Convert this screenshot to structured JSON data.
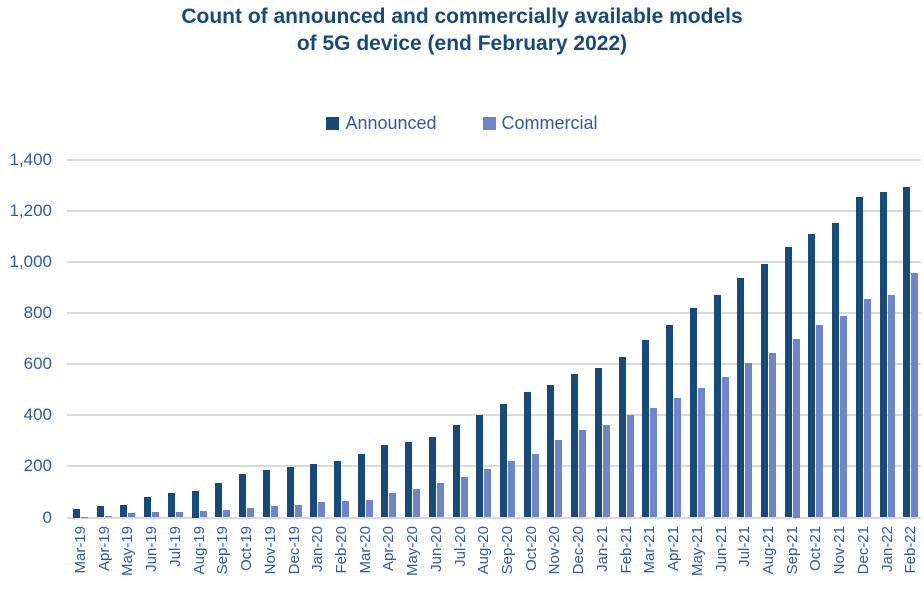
{
  "title": {
    "line1": "Count of announced and commercially available models",
    "line2": "of 5G device (end February 2022)"
  },
  "legend": {
    "announced": "Announced",
    "commercial": "Commercial"
  },
  "colors": {
    "announced_bar": "#174A7C",
    "commercial_bar": "#6F84C9",
    "gridline": "#D9D9D9",
    "axis_text": "#2E5C9E",
    "title_text": "#17497B"
  },
  "chart_data": {
    "type": "bar",
    "title": "Count of announced and commercially available models of 5G device (end February 2022)",
    "xlabel": "",
    "ylabel": "",
    "grid": true,
    "legend_position": "top",
    "ylim": [
      0,
      1400
    ],
    "yticks": [
      0,
      200,
      400,
      600,
      800,
      1000,
      1200,
      1400
    ],
    "ytick_labels": [
      "0",
      "200",
      "400",
      "600",
      "800",
      "1,000",
      "1,200",
      "1,400"
    ],
    "categories": [
      "Mar-19",
      "Apr-19",
      "May-19",
      "Jun-19",
      "Jul-19",
      "Aug-19",
      "Sep-19",
      "Oct-19",
      "Nov-19",
      "Dec-19",
      "Jan-20",
      "Feb-20",
      "Mar-20",
      "Apr-20",
      "May-20",
      "Jun-20",
      "Jul-20",
      "Aug-20",
      "Sep-20",
      "Oct-20",
      "Nov-20",
      "Dec-20",
      "Jan-21",
      "Feb-21",
      "Mar-21",
      "Apr-21",
      "May-21",
      "Jun-21",
      "Jul-21",
      "Aug-21",
      "Sep-21",
      "Oct-21",
      "Nov-21",
      "Dec-21",
      "Jan-22",
      "Feb-22"
    ],
    "series": [
      {
        "name": "Announced",
        "color": "#174A7C",
        "values": [
          35,
          46,
          48,
          80,
          96,
          105,
          135,
          170,
          186,
          199,
          208,
          220,
          250,
          282,
          297,
          316,
          364,
          400,
          444,
          492,
          520,
          562,
          585,
          628,
          697,
          755,
          820,
          871,
          938,
          993,
          1060,
          1112,
          1153,
          1255,
          1276,
          1293
        ]
      },
      {
        "name": "Commercial",
        "color": "#6F84C9",
        "values": [
          2,
          5,
          18,
          22,
          23,
          25,
          30,
          38,
          44,
          50,
          62,
          63,
          68,
          94,
          110,
          135,
          160,
          190,
          222,
          248,
          305,
          341,
          363,
          402,
          430,
          468,
          509,
          550,
          605,
          645,
          700,
          752,
          788,
          857,
          872,
          956
        ]
      }
    ]
  }
}
